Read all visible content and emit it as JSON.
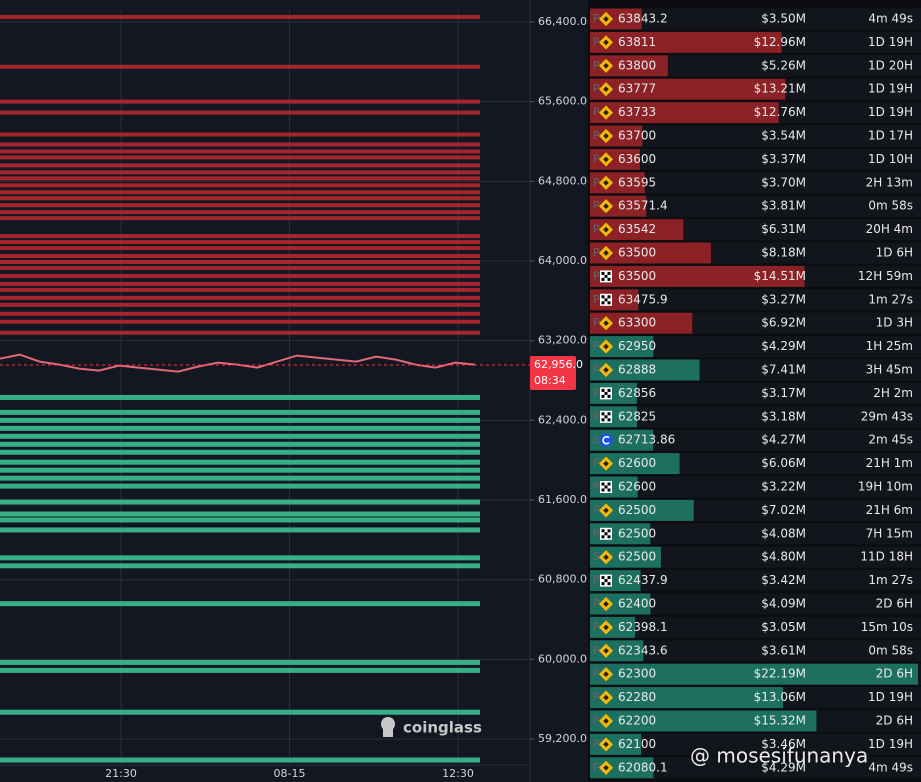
{
  "chart_data": {
    "type": "liquidation-heatmap",
    "ylim": [
      58940,
      66520
    ],
    "yticks": [
      {
        "value": 66400,
        "label": "66,400.0"
      },
      {
        "value": 65600,
        "label": "65,600.0"
      },
      {
        "value": 64800,
        "label": "64,800.0"
      },
      {
        "value": 64000,
        "label": "64,000.0"
      },
      {
        "value": 63200,
        "label": "63,200.0"
      },
      {
        "value": 62400,
        "label": "62,400.0"
      },
      {
        "value": 61600,
        "label": "61,600.0"
      },
      {
        "value": 60800,
        "label": "60,800.0"
      },
      {
        "value": 60000,
        "label": "60,000.0"
      },
      {
        "value": 59200,
        "label": "59,200.0"
      }
    ],
    "xticks": [
      "21:30",
      "08-15",
      "12:30"
    ],
    "grid": true,
    "price": {
      "color": "#e06a78",
      "values": [
        63020,
        63060,
        62990,
        62960,
        62920,
        62900,
        62950,
        62930,
        62910,
        62890,
        62940,
        62980,
        62960,
        62930,
        62990,
        63050,
        63030,
        63010,
        62990,
        63040,
        63010,
        62960,
        62930,
        62980,
        62960
      ]
    },
    "current_price": {
      "value": 62956,
      "label": "62,956.0",
      "countdown": "08:34",
      "color": "#f23645"
    },
    "levels": {
      "ask_color": "#c0282e",
      "bid_color": "#3dbf91",
      "asks": [
        66450,
        65950,
        65600,
        65490,
        65270,
        65170,
        65100,
        65040,
        64960,
        64890,
        64830,
        64760,
        64690,
        64630,
        64560,
        64490,
        64430,
        64250,
        64190,
        64130,
        64050,
        63990,
        63930,
        63850,
        63770,
        63710,
        63630,
        63560,
        63470,
        63390,
        63280
      ],
      "bids": [
        62630,
        62480,
        62400,
        62320,
        62240,
        62160,
        62080,
        61980,
        61900,
        61820,
        61740,
        61580,
        61460,
        61400,
        61300,
        61020,
        60940,
        60560,
        59970,
        59890,
        59470,
        58990
      ]
    },
    "watermark": "coinglass"
  },
  "order_book": {
    "ask_color": "#9a2228",
    "bid_color": "#1f7a67",
    "asks": [
      {
        "prefix": "P",
        "marker": "binance",
        "price": "63843.2",
        "amount": 3.5,
        "amount_label": "$3.50M",
        "time": "4m 49s"
      },
      {
        "prefix": "P",
        "marker": "binance",
        "price": "63811",
        "amount": 12.96,
        "amount_label": "$12.96M",
        "time": "1D 19H"
      },
      {
        "prefix": "P",
        "marker": "binance",
        "price": "63800",
        "amount": 5.26,
        "amount_label": "$5.26M",
        "time": "1D 20H"
      },
      {
        "prefix": "P",
        "marker": "binance",
        "price": "63777",
        "amount": 13.21,
        "amount_label": "$13.21M",
        "time": "1D 19H"
      },
      {
        "prefix": "P",
        "marker": "binance",
        "price": "63733",
        "amount": 12.76,
        "amount_label": "$12.76M",
        "time": "1D 19H"
      },
      {
        "prefix": "P",
        "marker": "binance",
        "price": "63700",
        "amount": 3.54,
        "amount_label": "$3.54M",
        "time": "1D 17H"
      },
      {
        "prefix": "P",
        "marker": "binance",
        "price": "63600",
        "amount": 3.37,
        "amount_label": "$3.37M",
        "time": "1D 10H"
      },
      {
        "prefix": "P",
        "marker": "binance",
        "price": "63595",
        "amount": 3.7,
        "amount_label": "$3.70M",
        "time": "2H 13m"
      },
      {
        "prefix": "P",
        "marker": "binance",
        "price": "63571.4",
        "amount": 3.81,
        "amount_label": "$3.81M",
        "time": "0m 58s"
      },
      {
        "prefix": "P",
        "marker": "binance",
        "price": "63542",
        "amount": 6.31,
        "amount_label": "$6.31M",
        "time": "20H 4m"
      },
      {
        "prefix": "P",
        "marker": "binance",
        "price": "63500",
        "amount": 8.18,
        "amount_label": "$8.18M",
        "time": "1D 6H"
      },
      {
        "prefix": "P",
        "marker": "okx",
        "price": "63500",
        "amount": 14.51,
        "amount_label": "$14.51M",
        "time": "12H 59m"
      },
      {
        "prefix": "P",
        "marker": "okx",
        "price": "63475.9",
        "amount": 3.27,
        "amount_label": "$3.27M",
        "time": "1m 27s"
      },
      {
        "prefix": "P",
        "marker": "binance",
        "price": "63300",
        "amount": 6.92,
        "amount_label": "$6.92M",
        "time": "1D 3H"
      }
    ],
    "bids": [
      {
        "prefix": "P",
        "marker": "binance",
        "price": "62950",
        "amount": 4.29,
        "amount_label": "$4.29M",
        "time": "1H 25m"
      },
      {
        "prefix": "P",
        "marker": "binance",
        "price": "62888",
        "amount": 7.41,
        "amount_label": "$7.41M",
        "time": "3H 45m"
      },
      {
        "prefix": "P",
        "marker": "okx",
        "price": "62856",
        "amount": 3.17,
        "amount_label": "$3.17M",
        "time": "2H 2m"
      },
      {
        "prefix": "P",
        "marker": "okx",
        "price": "62825",
        "amount": 3.18,
        "amount_label": "$3.18M",
        "time": "29m 43s"
      },
      {
        "prefix": "S",
        "marker": "coinbase",
        "price": "62713.86",
        "amount": 4.27,
        "amount_label": "$4.27M",
        "time": "2m 45s"
      },
      {
        "prefix": "P",
        "marker": "binance",
        "price": "62600",
        "amount": 6.06,
        "amount_label": "$6.06M",
        "time": "21H 1m"
      },
      {
        "prefix": "P",
        "marker": "okx",
        "price": "62600",
        "amount": 3.22,
        "amount_label": "$3.22M",
        "time": "19H 10m"
      },
      {
        "prefix": "P",
        "marker": "binance",
        "price": "62500",
        "amount": 7.02,
        "amount_label": "$7.02M",
        "time": "21H 6m"
      },
      {
        "prefix": "P",
        "marker": "okx",
        "price": "62500",
        "amount": 4.08,
        "amount_label": "$4.08M",
        "time": "7H 15m"
      },
      {
        "prefix": "S",
        "marker": "binance",
        "price": "62500",
        "amount": 4.8,
        "amount_label": "$4.80M",
        "time": "11D 18H"
      },
      {
        "prefix": "P",
        "marker": "okx",
        "price": "62437.9",
        "amount": 3.42,
        "amount_label": "$3.42M",
        "time": "1m 27s"
      },
      {
        "prefix": "P",
        "marker": "binance",
        "price": "62400",
        "amount": 4.09,
        "amount_label": "$4.09M",
        "time": "2D 6H"
      },
      {
        "prefix": "P",
        "marker": "binance",
        "price": "62398.1",
        "amount": 3.05,
        "amount_label": "$3.05M",
        "time": "15m 10s"
      },
      {
        "prefix": "P",
        "marker": "binance",
        "price": "62343.6",
        "amount": 3.61,
        "amount_label": "$3.61M",
        "time": "0m 58s"
      },
      {
        "prefix": "P",
        "marker": "binance",
        "price": "62300",
        "amount": 22.19,
        "amount_label": "$22.19M",
        "time": "2D 6H"
      },
      {
        "prefix": "P",
        "marker": "binance",
        "price": "62280",
        "amount": 13.06,
        "amount_label": "$13.06M",
        "time": "1D 19H"
      },
      {
        "prefix": "P",
        "marker": "binance",
        "price": "62200",
        "amount": 15.32,
        "amount_label": "$15.32M",
        "time": "2D 6H"
      },
      {
        "prefix": "P",
        "marker": "binance",
        "price": "62100",
        "amount": 3.46,
        "amount_label": "$3.46M",
        "time": "1D 19H"
      },
      {
        "prefix": "P",
        "marker": "binance",
        "price": "62080.1",
        "amount": 4.29,
        "amount_label": "$4.29M",
        "time": "4m 49s"
      }
    ]
  },
  "watermark": "@ mosesifunanya"
}
